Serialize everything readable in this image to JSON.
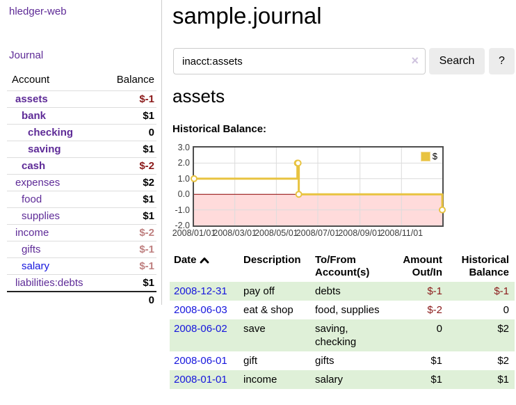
{
  "colors": {
    "accent_purple": "#5e2b97",
    "link_blue": "#1515dd",
    "negative_strong": "#8b1a1a",
    "negative_soft": "#bf8080",
    "row_stripe_green": "#dff0d8",
    "chart_gold": "#e8c340",
    "chart_negative_fill": "#ffdbdb",
    "chart_zero_line": "#8b0000"
  },
  "sidebar": {
    "brand": "hledger-web",
    "journal_link": "Journal",
    "accounts_headers": {
      "account": "Account",
      "balance": "Balance"
    },
    "accounts": [
      {
        "name": "assets",
        "balance": "$-1",
        "depth_class": "d1",
        "row_class": "cur",
        "balance_class": "neg-strong",
        "name_class": ""
      },
      {
        "name": "bank",
        "balance": "$1",
        "depth_class": "d2",
        "row_class": "cur",
        "balance_class": "",
        "name_class": ""
      },
      {
        "name": "checking",
        "balance": "0",
        "depth_class": "d3",
        "row_class": "cur",
        "balance_class": "",
        "name_class": ""
      },
      {
        "name": "saving",
        "balance": "$1",
        "depth_class": "d3",
        "row_class": "cur",
        "balance_class": "",
        "name_class": ""
      },
      {
        "name": "cash",
        "balance": "$-2",
        "depth_class": "d2",
        "row_class": "cur",
        "balance_class": "neg-strong",
        "name_class": ""
      },
      {
        "name": "expenses",
        "balance": "$2",
        "depth_class": "d1",
        "row_class": "",
        "balance_class": "",
        "name_class": ""
      },
      {
        "name": "food",
        "balance": "$1",
        "depth_class": "d2",
        "row_class": "",
        "balance_class": "",
        "name_class": ""
      },
      {
        "name": "supplies",
        "balance": "$1",
        "depth_class": "d2",
        "row_class": "",
        "balance_class": "",
        "name_class": ""
      },
      {
        "name": "income",
        "balance": "$-2",
        "depth_class": "d1",
        "row_class": "",
        "balance_class": "neg-soft",
        "name_class": ""
      },
      {
        "name": "gifts",
        "balance": "$-1",
        "depth_class": "d2",
        "row_class": "",
        "balance_class": "neg-soft",
        "name_class": ""
      },
      {
        "name": "salary",
        "balance": "$-1",
        "depth_class": "d2",
        "row_class": "",
        "balance_class": "neg-soft",
        "name_class": "unvisited"
      },
      {
        "name": "liabilities:debts",
        "balance": "$1",
        "depth_class": "d1",
        "row_class": "",
        "balance_class": "",
        "name_class": ""
      }
    ],
    "accounts_total": "0"
  },
  "header": {
    "title": "sample.journal"
  },
  "search": {
    "value": "inacct:assets",
    "clear_icon": "×",
    "button_label": "Search",
    "help_label": "?"
  },
  "account_page": {
    "title": "assets",
    "chart_label": "Historical Balance:"
  },
  "chart_data": {
    "type": "line",
    "step": true,
    "title": "Historical Balance:",
    "x": [
      "2008-01-01",
      "2008-06-01",
      "2008-06-02",
      "2008-06-03",
      "2008-12-31"
    ],
    "series": [
      {
        "name": "$",
        "values": [
          1,
          2,
          2,
          0,
          -1
        ],
        "color": "#e8c340"
      }
    ],
    "xlim": [
      "2008-01-01",
      "2008-12-31"
    ],
    "ylim": [
      -2,
      3
    ],
    "xticks": [
      {
        "v": "2008-01-01",
        "label": "2008/01/01"
      },
      {
        "v": "2008-03-01",
        "label": "2008/03/01"
      },
      {
        "v": "2008-05-01",
        "label": "2008/05/01"
      },
      {
        "v": "2008-07-01",
        "label": "2008/07/01"
      },
      {
        "v": "2008-09-01",
        "label": "2008/09/01"
      },
      {
        "v": "2008-11-01",
        "label": "2008/11/01"
      }
    ],
    "yticks": [
      {
        "v": -2,
        "label": "-2.0"
      },
      {
        "v": -1,
        "label": "-1.0"
      },
      {
        "v": 0,
        "label": "0.0"
      },
      {
        "v": 1,
        "label": "1.0"
      },
      {
        "v": 2,
        "label": "2.0"
      },
      {
        "v": 3,
        "label": "3.0"
      }
    ],
    "grid": true,
    "grid_color": "#dcdcdc",
    "negative_region_color": "#ffdbdb",
    "zero_line_color": "#8b0000",
    "legend": {
      "position": "top-right",
      "entries": [
        {
          "label": "$",
          "color": "#e8c340"
        }
      ]
    }
  },
  "register": {
    "headers": {
      "date": "Date",
      "description": "Description",
      "accounts": "To/From Account(s)",
      "amount": "Amount Out/In",
      "balance": "Historical Balance"
    },
    "rows": [
      {
        "date": "2008-12-31",
        "description": "pay off",
        "accounts": "debts",
        "amount": "$-1",
        "amount_class": "neg",
        "balance": "$-1",
        "balance_class": "neg"
      },
      {
        "date": "2008-06-03",
        "description": "eat & shop",
        "accounts": "food, supplies",
        "amount": "$-2",
        "amount_class": "neg",
        "balance": "0",
        "balance_class": ""
      },
      {
        "date": "2008-06-02",
        "description": "save",
        "accounts": "saving, checking",
        "amount": "0",
        "amount_class": "",
        "balance": "$2",
        "balance_class": ""
      },
      {
        "date": "2008-06-01",
        "description": "gift",
        "accounts": "gifts",
        "amount": "$1",
        "amount_class": "",
        "balance": "$2",
        "balance_class": ""
      },
      {
        "date": "2008-01-01",
        "description": "income",
        "accounts": "salary",
        "amount": "$1",
        "amount_class": "",
        "balance": "$1",
        "balance_class": ""
      }
    ]
  }
}
